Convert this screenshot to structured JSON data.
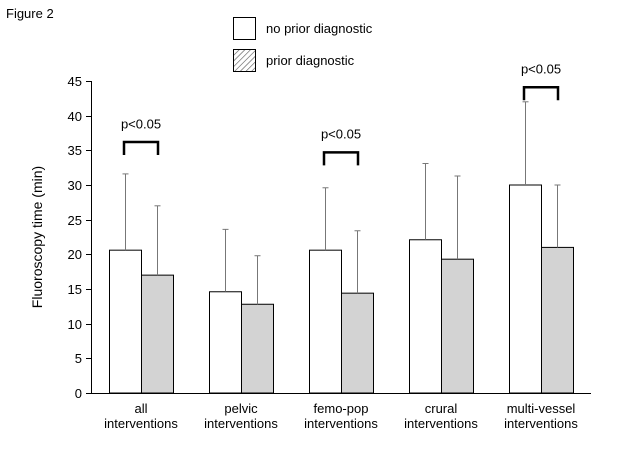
{
  "figure_label": "Figure 2",
  "chart_data": {
    "type": "bar",
    "title": "",
    "xlabel": "",
    "ylabel": "Fluoroscopy time (min)",
    "ylim": [
      0,
      45
    ],
    "yticks": [
      0,
      5,
      10,
      15,
      20,
      25,
      30,
      35,
      40,
      45
    ],
    "grid": false,
    "legend_position": "top-center",
    "categories": [
      [
        "all",
        "interventions"
      ],
      [
        "pelvic",
        "interventions"
      ],
      [
        "femo-pop",
        "interventions"
      ],
      [
        "crural",
        "interventions"
      ],
      [
        "multi-vessel",
        "interventions"
      ]
    ],
    "series": [
      {
        "name": "no prior diagnostic",
        "fill": "#ffffff",
        "values": [
          20.6,
          14.6,
          20.6,
          22.1,
          30.0
        ],
        "error": [
          11.0,
          9.0,
          9.0,
          11.0,
          12.0
        ]
      },
      {
        "name": "prior diagnostic",
        "fill": "#d3d3d3",
        "legend_pattern": "hatched",
        "values": [
          17.0,
          12.8,
          14.4,
          19.3,
          21.0
        ],
        "error": [
          10.0,
          7.0,
          9.0,
          12.0,
          9.0
        ]
      }
    ],
    "annotations": [
      {
        "category_index": 0,
        "text": "p<0.05",
        "bracket_y": 36.2,
        "label_y": 38.9
      },
      {
        "category_index": 2,
        "text": "p<0.05",
        "bracket_y": 34.7,
        "label_y": 37.4
      },
      {
        "category_index": 4,
        "text": "p<0.05",
        "bracket_y": 44.1,
        "label_y": 46.8
      }
    ]
  }
}
